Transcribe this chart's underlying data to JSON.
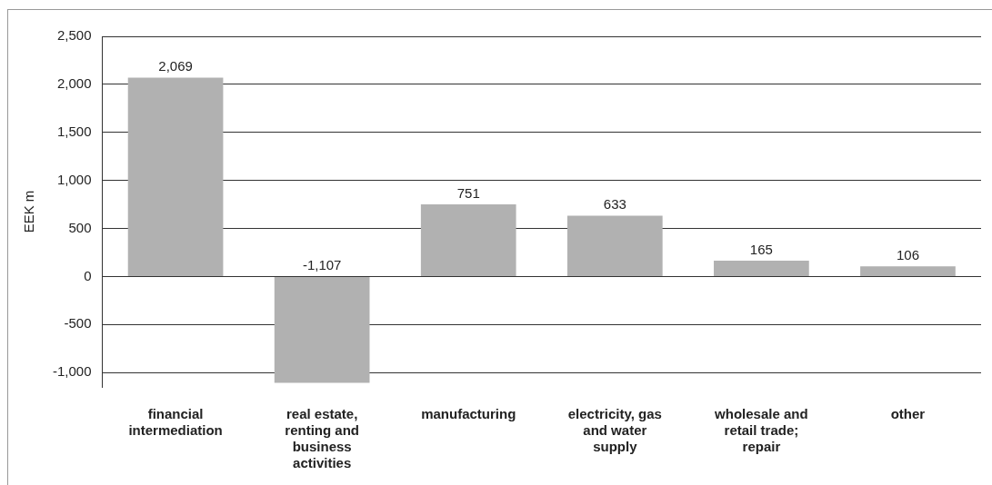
{
  "chart_data": {
    "type": "bar",
    "ylabel": "EEK m",
    "categories": [
      "financial intermediation",
      "real estate, renting and business activities",
      "manufacturing",
      "electricity, gas and water supply",
      "wholesale and retail trade; repair",
      "other"
    ],
    "values": [
      2069,
      -1107,
      751,
      633,
      165,
      106
    ],
    "value_labels": [
      "2,069",
      "-1,107",
      "751",
      "633",
      "165",
      "106"
    ],
    "color": "#b1b1b1",
    "ylim": [
      -1150,
      2500
    ],
    "yticks": [
      {
        "value": -1000,
        "label": "-1,000"
      },
      {
        "value": -500,
        "label": "-500"
      },
      0,
      500,
      {
        "value": 1000,
        "label": "1,000"
      },
      {
        "value": 1500,
        "label": "1,500"
      },
      {
        "value": 2000,
        "label": "2,000"
      },
      {
        "value": 2500,
        "label": "2,500"
      }
    ],
    "grid": "y",
    "legend": false
  }
}
